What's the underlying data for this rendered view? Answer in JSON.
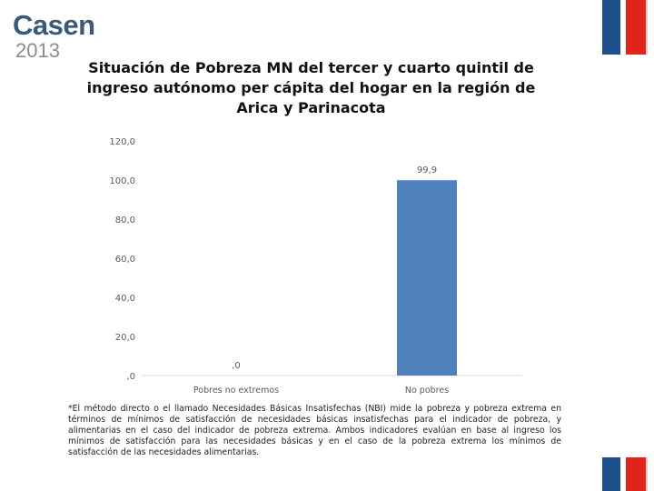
{
  "logo": {
    "name": "Casen",
    "year": "2013"
  },
  "brand_colors": {
    "logo": "#3a5a78",
    "flag_blue": "#1f4e8c",
    "flag_red": "#e2231a",
    "bar": "#4f81bd"
  },
  "title": "Situación de Pobreza MN del tercer y cuarto quintil de ingreso autónomo per cápita del hogar en la región de Arica y Parinacota",
  "chart_data": {
    "type": "bar",
    "title": "Situación de Pobreza MN del tercer y cuarto quintil de ingreso autónomo per cápita del hogar en la región de Arica y Parinacota",
    "categories": [
      "Pobres no extremos",
      "No pobres"
    ],
    "values": [
      0.0,
      99.9
    ],
    "value_labels": [
      ",0",
      "99,9"
    ],
    "ylim": [
      0,
      120
    ],
    "yticks": [
      ",0",
      "20,0",
      "40,0",
      "60,0",
      "80,0",
      "100,0",
      "120,0"
    ],
    "xlabel": "",
    "ylabel": "",
    "grid": false,
    "bar_color": "#4f81bd"
  },
  "footnote": "*El método directo o el llamado Necesidades Básicas Insatisfechas (NBI) mide la pobreza y pobreza extrema en términos de mínimos de satisfacción de necesidades básicas insatisfechas para el indicador de pobreza, y alimentarias en el caso del indicador de pobreza extrema. Ambos indicadores evalúan en base al ingreso los mínimos de satisfacción para las necesidades básicas y  en el caso de la pobreza  extrema los mínimos de satisfacción de las necesidades alimentarias."
}
